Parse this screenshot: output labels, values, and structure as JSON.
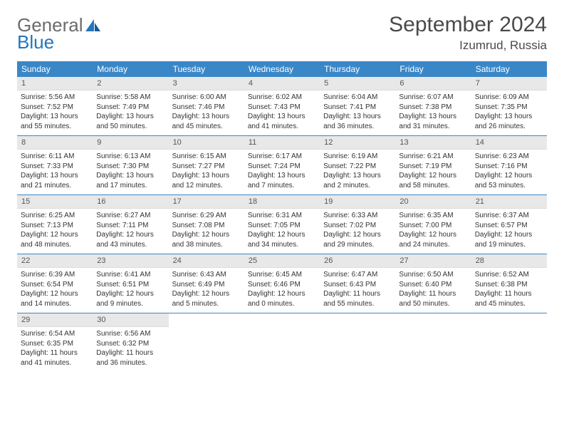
{
  "logo": {
    "text1": "General",
    "text2": "Blue"
  },
  "title": "September 2024",
  "location": "Izumrud, Russia",
  "headers": [
    "Sunday",
    "Monday",
    "Tuesday",
    "Wednesday",
    "Thursday",
    "Friday",
    "Saturday"
  ],
  "colors": {
    "header_bg": "#3a87c8",
    "header_fg": "#ffffff",
    "daynum_bg": "#e8e8e8",
    "rule": "#3a87c8",
    "logo_grey": "#6b6b6b",
    "logo_blue": "#2176bd",
    "text": "#333333"
  },
  "weeks": [
    [
      {
        "n": "1",
        "sr": "Sunrise: 5:56 AM",
        "ss": "Sunset: 7:52 PM",
        "d1": "Daylight: 13 hours",
        "d2": "and 55 minutes."
      },
      {
        "n": "2",
        "sr": "Sunrise: 5:58 AM",
        "ss": "Sunset: 7:49 PM",
        "d1": "Daylight: 13 hours",
        "d2": "and 50 minutes."
      },
      {
        "n": "3",
        "sr": "Sunrise: 6:00 AM",
        "ss": "Sunset: 7:46 PM",
        "d1": "Daylight: 13 hours",
        "d2": "and 45 minutes."
      },
      {
        "n": "4",
        "sr": "Sunrise: 6:02 AM",
        "ss": "Sunset: 7:43 PM",
        "d1": "Daylight: 13 hours",
        "d2": "and 41 minutes."
      },
      {
        "n": "5",
        "sr": "Sunrise: 6:04 AM",
        "ss": "Sunset: 7:41 PM",
        "d1": "Daylight: 13 hours",
        "d2": "and 36 minutes."
      },
      {
        "n": "6",
        "sr": "Sunrise: 6:07 AM",
        "ss": "Sunset: 7:38 PM",
        "d1": "Daylight: 13 hours",
        "d2": "and 31 minutes."
      },
      {
        "n": "7",
        "sr": "Sunrise: 6:09 AM",
        "ss": "Sunset: 7:35 PM",
        "d1": "Daylight: 13 hours",
        "d2": "and 26 minutes."
      }
    ],
    [
      {
        "n": "8",
        "sr": "Sunrise: 6:11 AM",
        "ss": "Sunset: 7:33 PM",
        "d1": "Daylight: 13 hours",
        "d2": "and 21 minutes."
      },
      {
        "n": "9",
        "sr": "Sunrise: 6:13 AM",
        "ss": "Sunset: 7:30 PM",
        "d1": "Daylight: 13 hours",
        "d2": "and 17 minutes."
      },
      {
        "n": "10",
        "sr": "Sunrise: 6:15 AM",
        "ss": "Sunset: 7:27 PM",
        "d1": "Daylight: 13 hours",
        "d2": "and 12 minutes."
      },
      {
        "n": "11",
        "sr": "Sunrise: 6:17 AM",
        "ss": "Sunset: 7:24 PM",
        "d1": "Daylight: 13 hours",
        "d2": "and 7 minutes."
      },
      {
        "n": "12",
        "sr": "Sunrise: 6:19 AM",
        "ss": "Sunset: 7:22 PM",
        "d1": "Daylight: 13 hours",
        "d2": "and 2 minutes."
      },
      {
        "n": "13",
        "sr": "Sunrise: 6:21 AM",
        "ss": "Sunset: 7:19 PM",
        "d1": "Daylight: 12 hours",
        "d2": "and 58 minutes."
      },
      {
        "n": "14",
        "sr": "Sunrise: 6:23 AM",
        "ss": "Sunset: 7:16 PM",
        "d1": "Daylight: 12 hours",
        "d2": "and 53 minutes."
      }
    ],
    [
      {
        "n": "15",
        "sr": "Sunrise: 6:25 AM",
        "ss": "Sunset: 7:13 PM",
        "d1": "Daylight: 12 hours",
        "d2": "and 48 minutes."
      },
      {
        "n": "16",
        "sr": "Sunrise: 6:27 AM",
        "ss": "Sunset: 7:11 PM",
        "d1": "Daylight: 12 hours",
        "d2": "and 43 minutes."
      },
      {
        "n": "17",
        "sr": "Sunrise: 6:29 AM",
        "ss": "Sunset: 7:08 PM",
        "d1": "Daylight: 12 hours",
        "d2": "and 38 minutes."
      },
      {
        "n": "18",
        "sr": "Sunrise: 6:31 AM",
        "ss": "Sunset: 7:05 PM",
        "d1": "Daylight: 12 hours",
        "d2": "and 34 minutes."
      },
      {
        "n": "19",
        "sr": "Sunrise: 6:33 AM",
        "ss": "Sunset: 7:02 PM",
        "d1": "Daylight: 12 hours",
        "d2": "and 29 minutes."
      },
      {
        "n": "20",
        "sr": "Sunrise: 6:35 AM",
        "ss": "Sunset: 7:00 PM",
        "d1": "Daylight: 12 hours",
        "d2": "and 24 minutes."
      },
      {
        "n": "21",
        "sr": "Sunrise: 6:37 AM",
        "ss": "Sunset: 6:57 PM",
        "d1": "Daylight: 12 hours",
        "d2": "and 19 minutes."
      }
    ],
    [
      {
        "n": "22",
        "sr": "Sunrise: 6:39 AM",
        "ss": "Sunset: 6:54 PM",
        "d1": "Daylight: 12 hours",
        "d2": "and 14 minutes."
      },
      {
        "n": "23",
        "sr": "Sunrise: 6:41 AM",
        "ss": "Sunset: 6:51 PM",
        "d1": "Daylight: 12 hours",
        "d2": "and 9 minutes."
      },
      {
        "n": "24",
        "sr": "Sunrise: 6:43 AM",
        "ss": "Sunset: 6:49 PM",
        "d1": "Daylight: 12 hours",
        "d2": "and 5 minutes."
      },
      {
        "n": "25",
        "sr": "Sunrise: 6:45 AM",
        "ss": "Sunset: 6:46 PM",
        "d1": "Daylight: 12 hours",
        "d2": "and 0 minutes."
      },
      {
        "n": "26",
        "sr": "Sunrise: 6:47 AM",
        "ss": "Sunset: 6:43 PM",
        "d1": "Daylight: 11 hours",
        "d2": "and 55 minutes."
      },
      {
        "n": "27",
        "sr": "Sunrise: 6:50 AM",
        "ss": "Sunset: 6:40 PM",
        "d1": "Daylight: 11 hours",
        "d2": "and 50 minutes."
      },
      {
        "n": "28",
        "sr": "Sunrise: 6:52 AM",
        "ss": "Sunset: 6:38 PM",
        "d1": "Daylight: 11 hours",
        "d2": "and 45 minutes."
      }
    ],
    [
      {
        "n": "29",
        "sr": "Sunrise: 6:54 AM",
        "ss": "Sunset: 6:35 PM",
        "d1": "Daylight: 11 hours",
        "d2": "and 41 minutes."
      },
      {
        "n": "30",
        "sr": "Sunrise: 6:56 AM",
        "ss": "Sunset: 6:32 PM",
        "d1": "Daylight: 11 hours",
        "d2": "and 36 minutes."
      },
      null,
      null,
      null,
      null,
      null
    ]
  ]
}
